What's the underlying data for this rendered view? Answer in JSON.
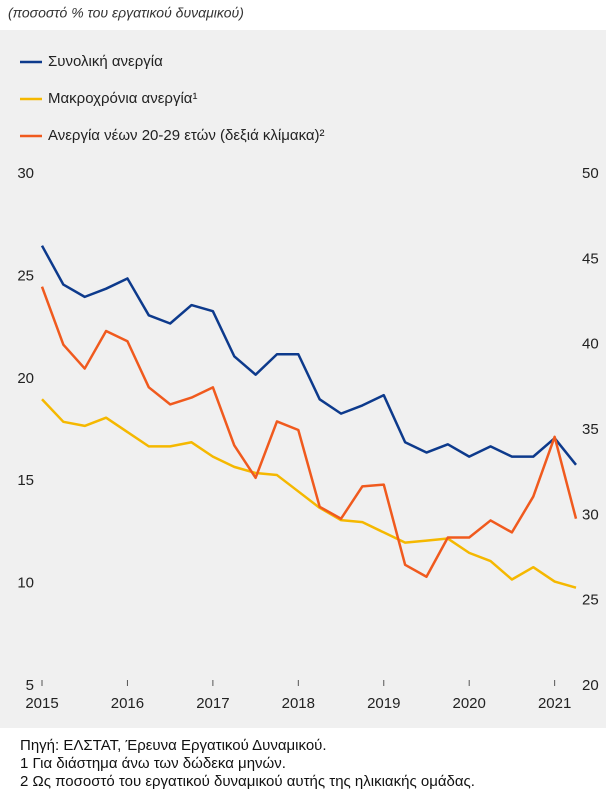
{
  "chart_data": {
    "type": "line",
    "subtitle": "(ποσοστό % του εργατικού δυναμικού)",
    "x": [
      2015,
      2015.25,
      2015.5,
      2015.75,
      2016,
      2016.25,
      2016.5,
      2016.75,
      2017,
      2017.25,
      2017.5,
      2017.75,
      2018,
      2018.25,
      2018.5,
      2018.75,
      2019,
      2019.25,
      2019.5,
      2019.75,
      2020,
      2020.25,
      2020.5,
      2020.75,
      2021,
      2021.25
    ],
    "series": [
      {
        "name": "Συνολική ανεργία",
        "color": "#0d3a8c",
        "values": [
          26.5,
          24.6,
          24.0,
          24.4,
          24.9,
          23.1,
          22.7,
          23.6,
          23.3,
          21.1,
          20.2,
          21.2,
          21.2,
          19.0,
          18.3,
          18.7,
          19.2,
          16.9,
          16.4,
          16.8,
          16.2,
          16.7,
          16.2,
          16.2,
          17.1,
          15.8
        ]
      },
      {
        "name": "Μακροχρόνια ανεργία¹",
        "color": "#f5b800",
        "values": [
          19.0,
          17.9,
          17.7,
          18.1,
          17.4,
          16.7,
          16.7,
          16.9,
          16.2,
          15.7,
          15.4,
          15.3,
          14.5,
          13.7,
          13.1,
          13.0,
          12.5,
          12.0,
          12.1,
          12.2,
          11.5,
          11.1,
          10.2,
          10.8,
          10.1,
          9.8
        ]
      },
      {
        "name": "Ανεργία νέων 20-29 ετών (δεξιά κλίμακα)²",
        "color": "#f05a1e",
        "axis": "y2",
        "values": [
          43.4,
          40.0,
          38.6,
          40.8,
          40.2,
          37.5,
          36.5,
          36.9,
          37.5,
          34.1,
          32.2,
          35.5,
          35.0,
          30.5,
          29.8,
          31.7,
          31.8,
          27.1,
          26.4,
          28.7,
          28.7,
          29.7,
          29.0,
          31.1,
          34.6,
          29.8
        ]
      }
    ],
    "xlim": [
      2015,
      2021.25
    ],
    "xticks": [
      2015,
      2016,
      2017,
      2018,
      2019,
      2020,
      2021
    ],
    "ylim": [
      5,
      30
    ],
    "yticks": [
      5,
      10,
      15,
      20,
      25,
      30
    ],
    "y2lim": [
      20,
      50
    ],
    "y2ticks": [
      20,
      25,
      30,
      35,
      40,
      45,
      50
    ],
    "notes": [
      "Πηγή: ΕΛΣΤΑΤ, Έρευνα Εργατικού Δυναμικού.",
      "1 Για διάστημα άνω των δώδεκα μηνών.",
      "2 Ως ποσοστό του εργατικού δυναμικού αυτής της ηλικιακής ομάδας."
    ]
  }
}
